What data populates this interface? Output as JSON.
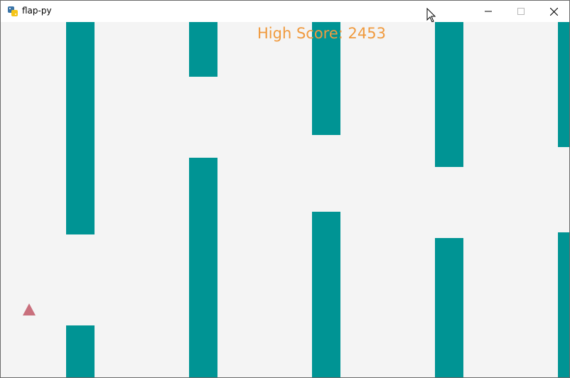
{
  "window": {
    "title": "flap-py",
    "icon": "python-icon",
    "controls": [
      "minimize-icon",
      "maximize-icon",
      "close-icon"
    ]
  },
  "game": {
    "high_score_label": "High Score: 2453",
    "colors": {
      "background": "#f4f4f4",
      "pipe": "#009494",
      "score_text": "#f09a3e",
      "player": "#c9707d"
    },
    "player_icon": "triangle-icon",
    "pipe_count": 5
  }
}
